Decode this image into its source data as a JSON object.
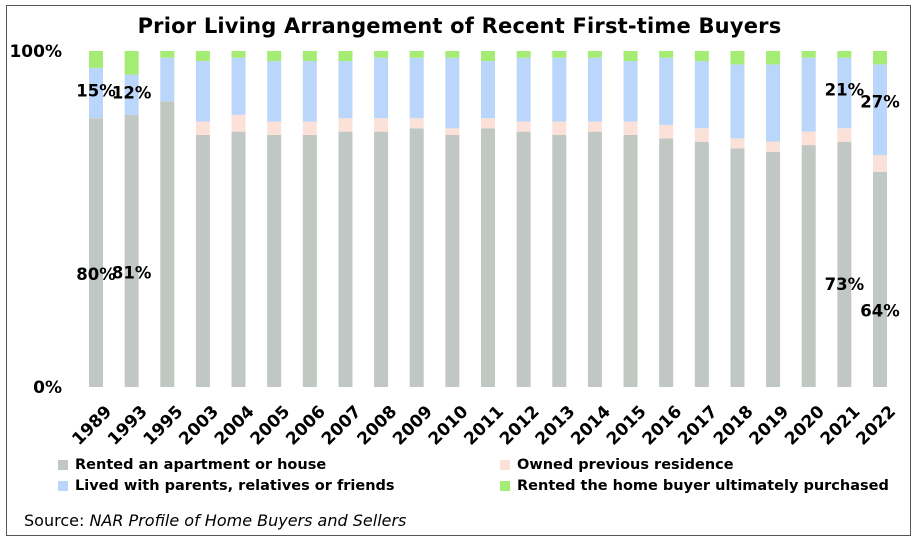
{
  "chart_data": {
    "type": "bar",
    "stacked": true,
    "normalized": true,
    "title": "Prior Living Arrangement of Recent First-time Buyers",
    "xlabel": "",
    "ylabel": "",
    "ylim": [
      0,
      100
    ],
    "y_tick_labels": [
      "0%",
      "100%"
    ],
    "grid": false,
    "legend_position": "bottom",
    "categories": [
      "1989",
      "1993",
      "1995",
      "2003",
      "2004",
      "2005",
      "2006",
      "2007",
      "2008",
      "2009",
      "2010",
      "2011",
      "2012",
      "2013",
      "2014",
      "2015",
      "2016",
      "2017",
      "2018",
      "2019",
      "2020",
      "2021",
      "2022"
    ],
    "series": [
      {
        "name": "Rented an apartment or house",
        "color": "#c1c8c4",
        "values": [
          80,
          81,
          85,
          75,
          76,
          75,
          75,
          76,
          76,
          77,
          75,
          77,
          76,
          75,
          76,
          75,
          74,
          73,
          71,
          70,
          72,
          73,
          64
        ]
      },
      {
        "name": "Owned previous residence",
        "color": "#fbe1d8",
        "values": [
          0,
          0,
          0,
          4,
          5,
          4,
          4,
          4,
          4,
          3,
          2,
          3,
          3,
          4,
          3,
          4,
          4,
          4,
          3,
          3,
          4,
          4,
          5
        ]
      },
      {
        "name": "Lived with parents, relatives or friends",
        "color": "#bbd6fb",
        "values": [
          15,
          12,
          13,
          18,
          17,
          18,
          18,
          17,
          18,
          18,
          21,
          17,
          19,
          19,
          19,
          18,
          20,
          20,
          22,
          23,
          22,
          21,
          27
        ]
      },
      {
        "name": "Rented the home buyer ultimately purchased",
        "color": "#a4ec74",
        "values": [
          5,
          7,
          2,
          3,
          2,
          3,
          3,
          3,
          2,
          2,
          2,
          3,
          2,
          2,
          2,
          3,
          2,
          3,
          4,
          4,
          2,
          2,
          4
        ]
      }
    ],
    "data_labels": [
      {
        "text": "80%",
        "category": "1989",
        "series": "Rented an apartment or house"
      },
      {
        "text": "81%",
        "category": "1993",
        "series": "Rented an apartment or house"
      },
      {
        "text": "15%",
        "category": "1989",
        "series": "Lived with parents, relatives or friends"
      },
      {
        "text": "12%",
        "category": "1993",
        "series": "Lived with parents, relatives or friends"
      },
      {
        "text": "73%",
        "category": "2021",
        "series": "Rented an apartment or house"
      },
      {
        "text": "64%",
        "category": "2022",
        "series": "Rented an apartment or house"
      },
      {
        "text": "21%",
        "category": "2021",
        "series": "Lived with parents, relatives or friends"
      },
      {
        "text": "27%",
        "category": "2022",
        "series": "Lived with parents, relatives or friends"
      }
    ]
  },
  "legend": [
    {
      "label": "Rented an apartment or house",
      "color": "#c1c8c4"
    },
    {
      "label": "Owned previous residence",
      "color": "#fbe1d8"
    },
    {
      "label": "Lived with parents, relatives or friends",
      "color": "#bbd6fb"
    },
    {
      "label": "Rented the home buyer ultimately purchased",
      "color": "#a4ec74"
    }
  ],
  "source": {
    "prefix": "Source: ",
    "name": "NAR Profile of Home Buyers and Sellers"
  }
}
